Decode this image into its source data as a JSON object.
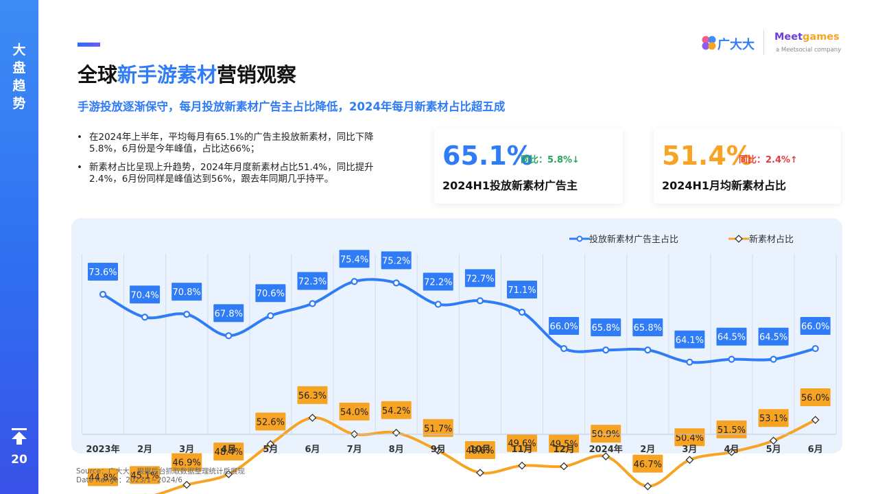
{
  "sidebar": {
    "chars": [
      "大",
      "盘",
      "趋",
      "势"
    ],
    "page_number": "20",
    "top_icon": "back-to-top-icon"
  },
  "header": {
    "title_pre": "全球",
    "title_highlight": "新手游素材",
    "title_post": "营销观察",
    "subtitle": "手游投放逐渐保守，每月投放新素材广告主占比降低，2024年每月新素材占比超五成"
  },
  "logos": {
    "gdd": "广大大",
    "meet_pre": "Meet",
    "meet_post": "games",
    "meet_sub": "a Meetsocial company"
  },
  "bullets": [
    "在2024年上半年，平均每月有65.1%的广告主投放新素材，同比下降5.8%，6月份是今年峰值，占比达66%；",
    "新素材占比呈现上升趋势，2024年月度新素材占比51.4%，同比提升2.4%，6月份同样是峰值达到56%，跟去年同期几乎持平。"
  ],
  "cards": [
    {
      "value": "65.1%",
      "yoy": "同比：5.8%↓",
      "label": "2024H1投放新素材广告主"
    },
    {
      "value": "51.4%",
      "yoy": "同比：2.4%↑",
      "label": "2024H1月均新素材占比"
    }
  ],
  "colors": {
    "blue": "#2f7cf6",
    "orange": "#f7a425",
    "panel": "#e9f2fd"
  },
  "chart_data": {
    "type": "line",
    "categories": [
      "2023年",
      "2月",
      "3月",
      "4月",
      "5月",
      "6月",
      "7月",
      "8月",
      "9月",
      "10月",
      "11月",
      "12月",
      "2024年",
      "2月",
      "3月",
      "4月",
      "5月",
      "6月"
    ],
    "series": [
      {
        "name": "投放新素材广告主占比",
        "color": "#2f7cf6",
        "values": [
          73.6,
          70.4,
          70.8,
          67.8,
          70.6,
          72.3,
          75.4,
          75.2,
          72.2,
          72.7,
          71.1,
          66.0,
          65.8,
          65.8,
          64.1,
          64.5,
          64.5,
          66.0
        ],
        "labels": [
          "73.6%",
          "70.4%",
          "70.8%",
          "67.8%",
          "70.6%",
          "72.3%",
          "75.4%",
          "75.2%",
          "72.2%",
          "72.7%",
          "71.1%",
          "66.0%",
          "65.8%",
          "65.8%",
          "64.1%",
          "64.5%",
          "64.5%",
          "66.0%"
        ]
      },
      {
        "name": "新素材占比",
        "color": "#f7a425",
        "values": [
          44.8,
          45.1,
          46.9,
          48.4,
          52.6,
          56.3,
          54.0,
          54.2,
          51.7,
          48.6,
          49.6,
          49.5,
          50.9,
          46.7,
          50.4,
          51.5,
          53.1,
          56.0
        ],
        "labels": [
          "44.8%",
          "45.1%",
          "46.9%",
          "48.4%",
          "52.6%",
          "56.3%",
          "54.0%",
          "54.2%",
          "51.7%",
          "48.6%",
          "49.6%",
          "49.5%",
          "50.9%",
          "46.7%",
          "50.4%",
          "51.5%",
          "53.1%",
          "56.0%"
        ]
      }
    ],
    "legend_position": "top-right",
    "grid": "vertical"
  },
  "source": {
    "line1": "Source：广大大，根据后台抓取数据整理统计后展现",
    "line2": "Date Range：2023/1~2024/6"
  }
}
